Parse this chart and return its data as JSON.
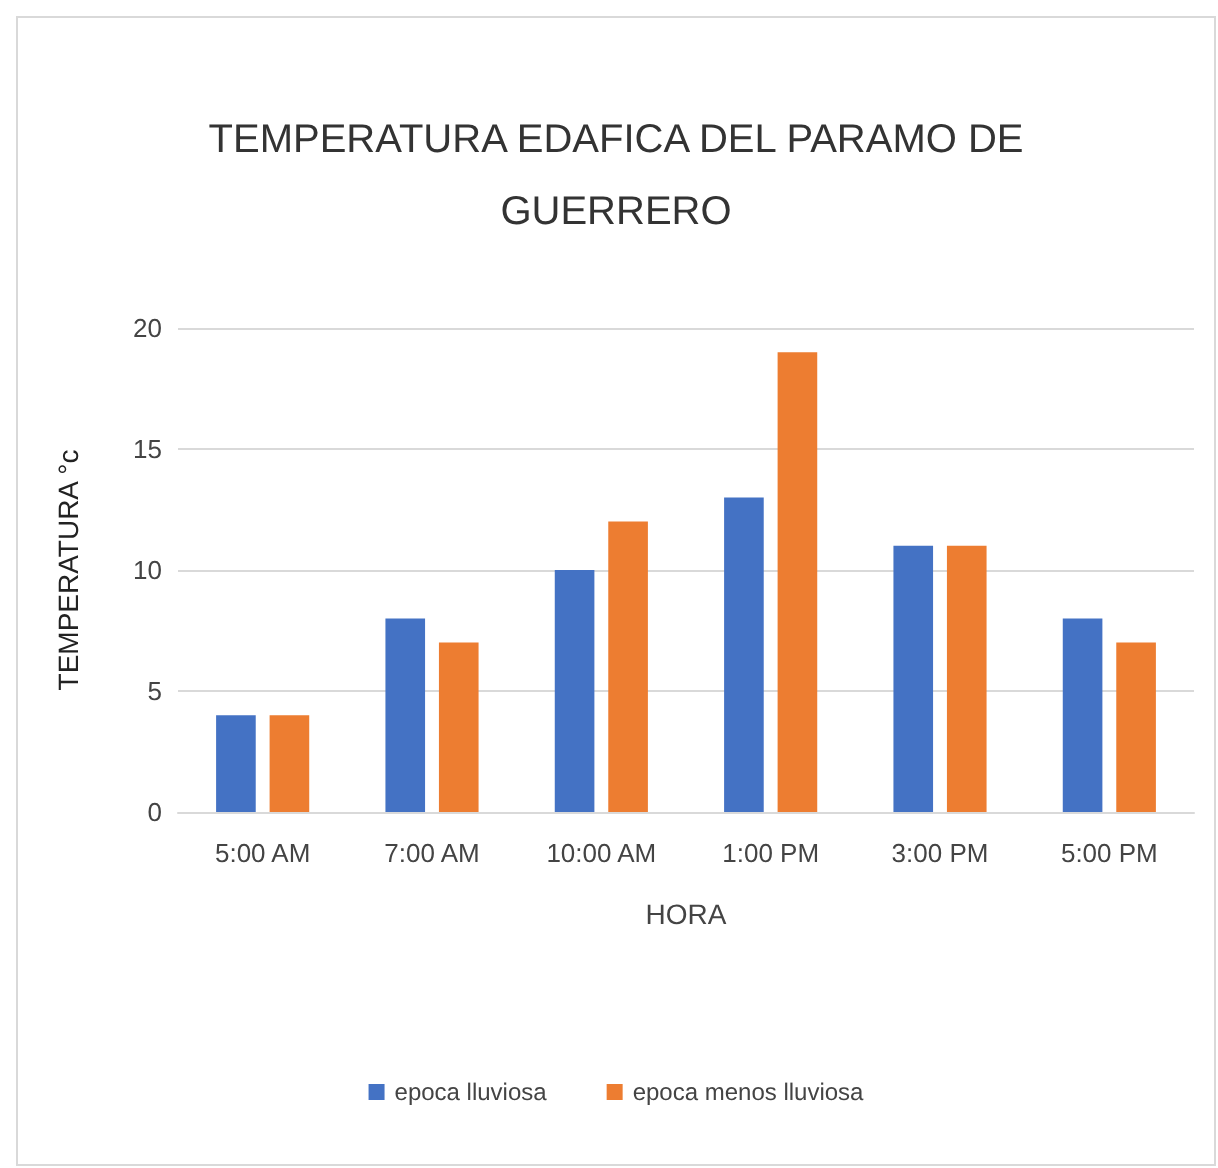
{
  "chart_data": {
    "type": "bar",
    "title": "TEMPERATURA EDAFICA DEL PARAMO DE\nGUERRERO",
    "xlabel": "HORA",
    "ylabel": "TEMPERATURA °c",
    "categories": [
      "5:00 AM",
      "7:00 AM",
      "10:00 AM",
      "1:00 PM",
      "3:00 PM",
      "5:00 PM"
    ],
    "series": [
      {
        "name": "epoca lluviosa",
        "color": "#4472c4",
        "values": [
          4,
          8,
          10,
          13,
          11,
          8
        ]
      },
      {
        "name": "epoca menos lluviosa",
        "color": "#ed7d31",
        "values": [
          4,
          7,
          12,
          19,
          11,
          7
        ]
      }
    ],
    "ylim": [
      0,
      20
    ],
    "yticks": [
      0,
      5,
      10,
      15,
      20
    ],
    "grid": "y",
    "legend": "bottom"
  }
}
